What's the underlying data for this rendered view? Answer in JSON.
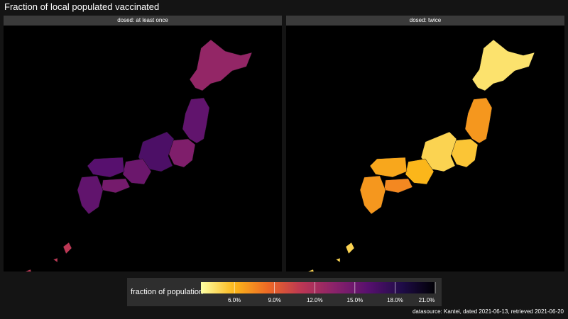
{
  "title": "Fraction of local populated vaccinated",
  "caption": "datasource: Kantei, dated 2021-06-13, retrieved 2021-06-20",
  "colors": {
    "background": "#141414",
    "panel": "#000000",
    "strip": "#3a3a3a",
    "legend_box": "#2e2e2e"
  },
  "chart_data": {
    "type": "heatmap",
    "geo": "Japan prefectures (choropleth)",
    "facets": [
      "dosed: at least once",
      "dosed: twice"
    ],
    "colorbar": {
      "title": "fraction of population",
      "min": 3.5,
      "max": 21.0,
      "ticks": [
        6.0,
        9.0,
        12.0,
        15.0,
        18.0,
        21.0
      ],
      "tick_labels": [
        "6.0%",
        "9.0%",
        "12.0%",
        "15.0%",
        "18.0%",
        "21.0%"
      ],
      "palette": [
        "#fcffa4",
        "#fbb61a",
        "#ed6925",
        "#bc3754",
        "#89226a",
        "#57106e",
        "#1f0c48",
        "#000004"
      ]
    },
    "series": [
      {
        "name": "dosed: at least once",
        "regions": [
          {
            "region": "Hokkaido",
            "value": 13.0
          },
          {
            "region": "Tohoku",
            "value": 15.5
          },
          {
            "region": "Kanto",
            "value": 14.0
          },
          {
            "region": "Chubu",
            "value": 16.5
          },
          {
            "region": "Kansai",
            "value": 15.0
          },
          {
            "region": "Chugoku",
            "value": 16.0
          },
          {
            "region": "Shikoku",
            "value": 14.5
          },
          {
            "region": "Kyushu",
            "value": 15.5
          },
          {
            "region": "Okinawa",
            "value": 11.0
          }
        ]
      },
      {
        "name": "dosed: twice",
        "regions": [
          {
            "region": "Hokkaido",
            "value": 4.5
          },
          {
            "region": "Tohoku",
            "value": 7.0
          },
          {
            "region": "Kanto",
            "value": 5.5
          },
          {
            "region": "Chubu",
            "value": 5.0
          },
          {
            "region": "Kansai",
            "value": 6.0
          },
          {
            "region": "Chugoku",
            "value": 6.5
          },
          {
            "region": "Shikoku",
            "value": 7.5
          },
          {
            "region": "Kyushu",
            "value": 7.0
          },
          {
            "region": "Okinawa",
            "value": 5.0
          }
        ]
      }
    ]
  }
}
